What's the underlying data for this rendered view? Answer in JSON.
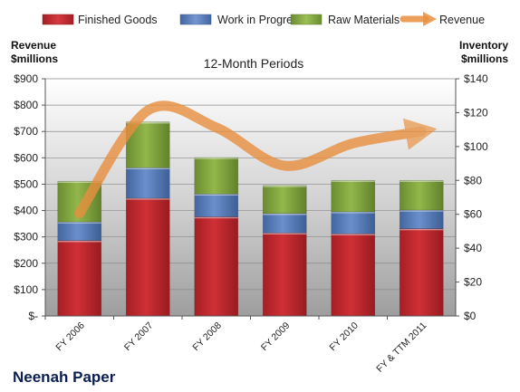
{
  "chart_data": {
    "type": "bar",
    "company": "Neenah Paper",
    "title": "12-Month Periods",
    "ylabel_left": [
      "Revenue",
      "$millions"
    ],
    "ylabel_right": [
      "Inventory",
      "$millions"
    ],
    "categories": [
      "FY 2006",
      "FY 2007",
      "FY 2008",
      "FY 2009",
      "FY 2010",
      "FY & TTM 2011"
    ],
    "left_axis": {
      "min": 0,
      "max": 900,
      "ticks": [
        "$-",
        "$100",
        "$200",
        "$300",
        "$400",
        "$500",
        "$600",
        "$700",
        "$800",
        "$900"
      ]
    },
    "right_axis": {
      "min": 0,
      "max": 140,
      "ticks": [
        "$0",
        "$20",
        "$40",
        "$60",
        "$80",
        "$100",
        "$120",
        "$140"
      ]
    },
    "series": [
      {
        "name": "Finished Goods",
        "axis": "right",
        "type": "stacked-bar",
        "color": "#c0272d",
        "values": [
          44.5,
          69.5,
          58.5,
          49.0,
          48.5,
          51.5
        ]
      },
      {
        "name": "Work in Progress",
        "axis": "right",
        "type": "stacked-bar",
        "color": "#4f7ac2",
        "values": [
          11.0,
          18.0,
          13.5,
          11.5,
          13.0,
          11.0
        ]
      },
      {
        "name": "Raw Materials",
        "axis": "right",
        "type": "stacked-bar",
        "color": "#7fa33b",
        "values": [
          24.0,
          27.0,
          21.5,
          16.5,
          18.5,
          17.5
        ]
      },
      {
        "name": "Revenue",
        "axis": "left",
        "type": "line",
        "color": "#e88f3e",
        "values": [
          390,
          780,
          715,
          570,
          655,
          700
        ]
      }
    ],
    "legend": "top",
    "grid": true
  }
}
